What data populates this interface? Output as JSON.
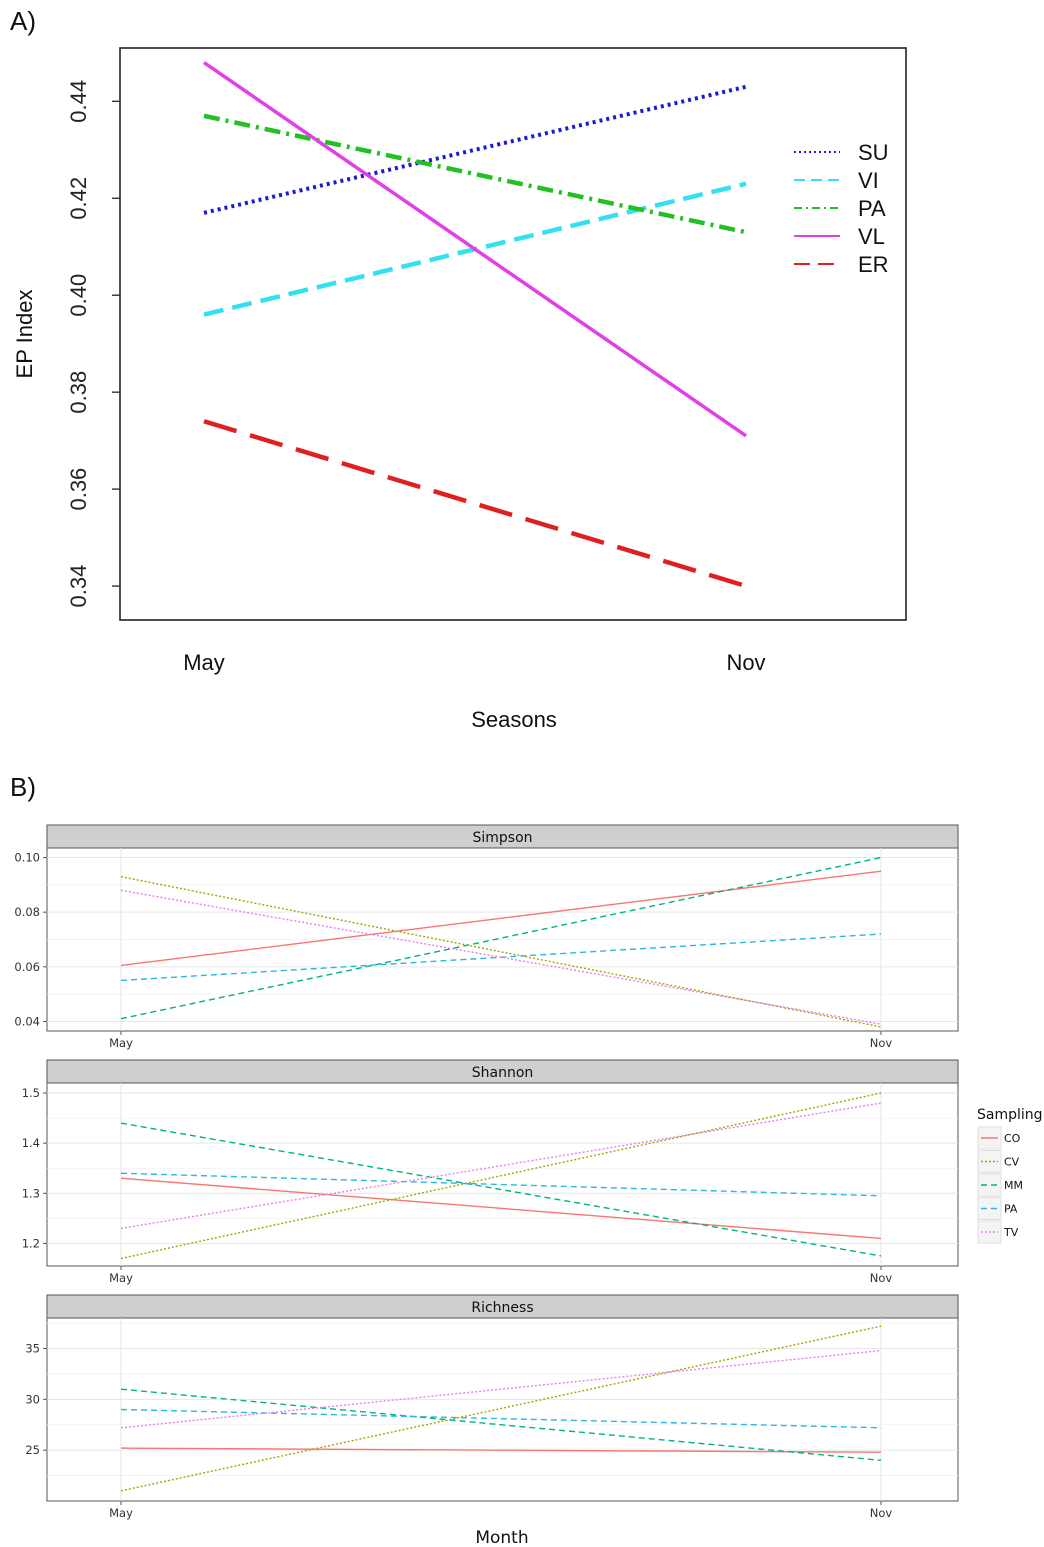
{
  "chart_data": [
    {
      "panel": "A)",
      "type": "line",
      "title": "",
      "xlabel": "Seasons",
      "ylabel": "EP Index",
      "categories": [
        "May",
        "Nov"
      ],
      "ylim": [
        0.333,
        0.451
      ],
      "yticks": [
        "0.34",
        "0.36",
        "0.38",
        "0.40",
        "0.42",
        "0.44"
      ],
      "grid": false,
      "legend": "right",
      "series": [
        {
          "name": "SU",
          "values": [
            0.417,
            0.443
          ],
          "color": "#1a1ad6",
          "style": "dotted"
        },
        {
          "name": "VI",
          "values": [
            0.396,
            0.423
          ],
          "color": "#33e0f0",
          "style": "dashed"
        },
        {
          "name": "PA",
          "values": [
            0.437,
            0.413
          ],
          "color": "#22c022",
          "style": "dashdot"
        },
        {
          "name": "VL",
          "values": [
            0.448,
            0.371
          ],
          "color": "#e040e8",
          "style": "solid"
        },
        {
          "name": "ER",
          "values": [
            0.374,
            0.34
          ],
          "color": "#e02020",
          "style": "longdash"
        }
      ]
    },
    {
      "panel": "B)",
      "type": "line",
      "xlabel": "Month",
      "categories": [
        "May",
        "Nov"
      ],
      "legend_title": "Sampling",
      "legend": "right",
      "grid": true,
      "legend_items": [
        {
          "name": "CO",
          "color": "#f8766d",
          "style": "solid"
        },
        {
          "name": "CV",
          "color": "#a3a500",
          "style": "dotted"
        },
        {
          "name": "MM",
          "color": "#00b381",
          "style": "dashed"
        },
        {
          "name": "PA",
          "color": "#2ab8e0",
          "style": "dashed"
        },
        {
          "name": "TV",
          "color": "#e77ff0",
          "style": "dotted"
        }
      ],
      "facets": [
        {
          "title": "Simpson",
          "ylim": [
            0.0365,
            0.1035
          ],
          "yticks": [
            "0.04",
            "0.06",
            "0.08",
            "0.10"
          ],
          "series": [
            {
              "name": "CO",
              "values": [
                0.0605,
                0.095
              ]
            },
            {
              "name": "CV",
              "values": [
                0.093,
                0.038
              ]
            },
            {
              "name": "MM",
              "values": [
                0.041,
                0.1
              ]
            },
            {
              "name": "PA",
              "values": [
                0.055,
                0.072
              ]
            },
            {
              "name": "TV",
              "values": [
                0.088,
                0.039
              ]
            }
          ]
        },
        {
          "title": "Shannon",
          "ylim": [
            1.155,
            1.52
          ],
          "yticks": [
            "1.2",
            "1.3",
            "1.4",
            "1.5"
          ],
          "series": [
            {
              "name": "CO",
              "values": [
                1.33,
                1.21
              ]
            },
            {
              "name": "CV",
              "values": [
                1.17,
                1.5
              ]
            },
            {
              "name": "MM",
              "values": [
                1.44,
                1.175
              ]
            },
            {
              "name": "PA",
              "values": [
                1.34,
                1.295
              ]
            },
            {
              "name": "TV",
              "values": [
                1.23,
                1.48
              ]
            }
          ]
        },
        {
          "title": "Richness",
          "ylim": [
            20,
            38
          ],
          "yticks": [
            "25",
            "30",
            "35"
          ],
          "series": [
            {
              "name": "CO",
              "values": [
                25.2,
                24.8
              ]
            },
            {
              "name": "CV",
              "values": [
                21.0,
                37.2
              ]
            },
            {
              "name": "MM",
              "values": [
                31.0,
                24.0
              ]
            },
            {
              "name": "PA",
              "values": [
                29.0,
                27.2
              ]
            },
            {
              "name": "TV",
              "values": [
                27.2,
                34.8
              ]
            }
          ]
        }
      ]
    }
  ]
}
